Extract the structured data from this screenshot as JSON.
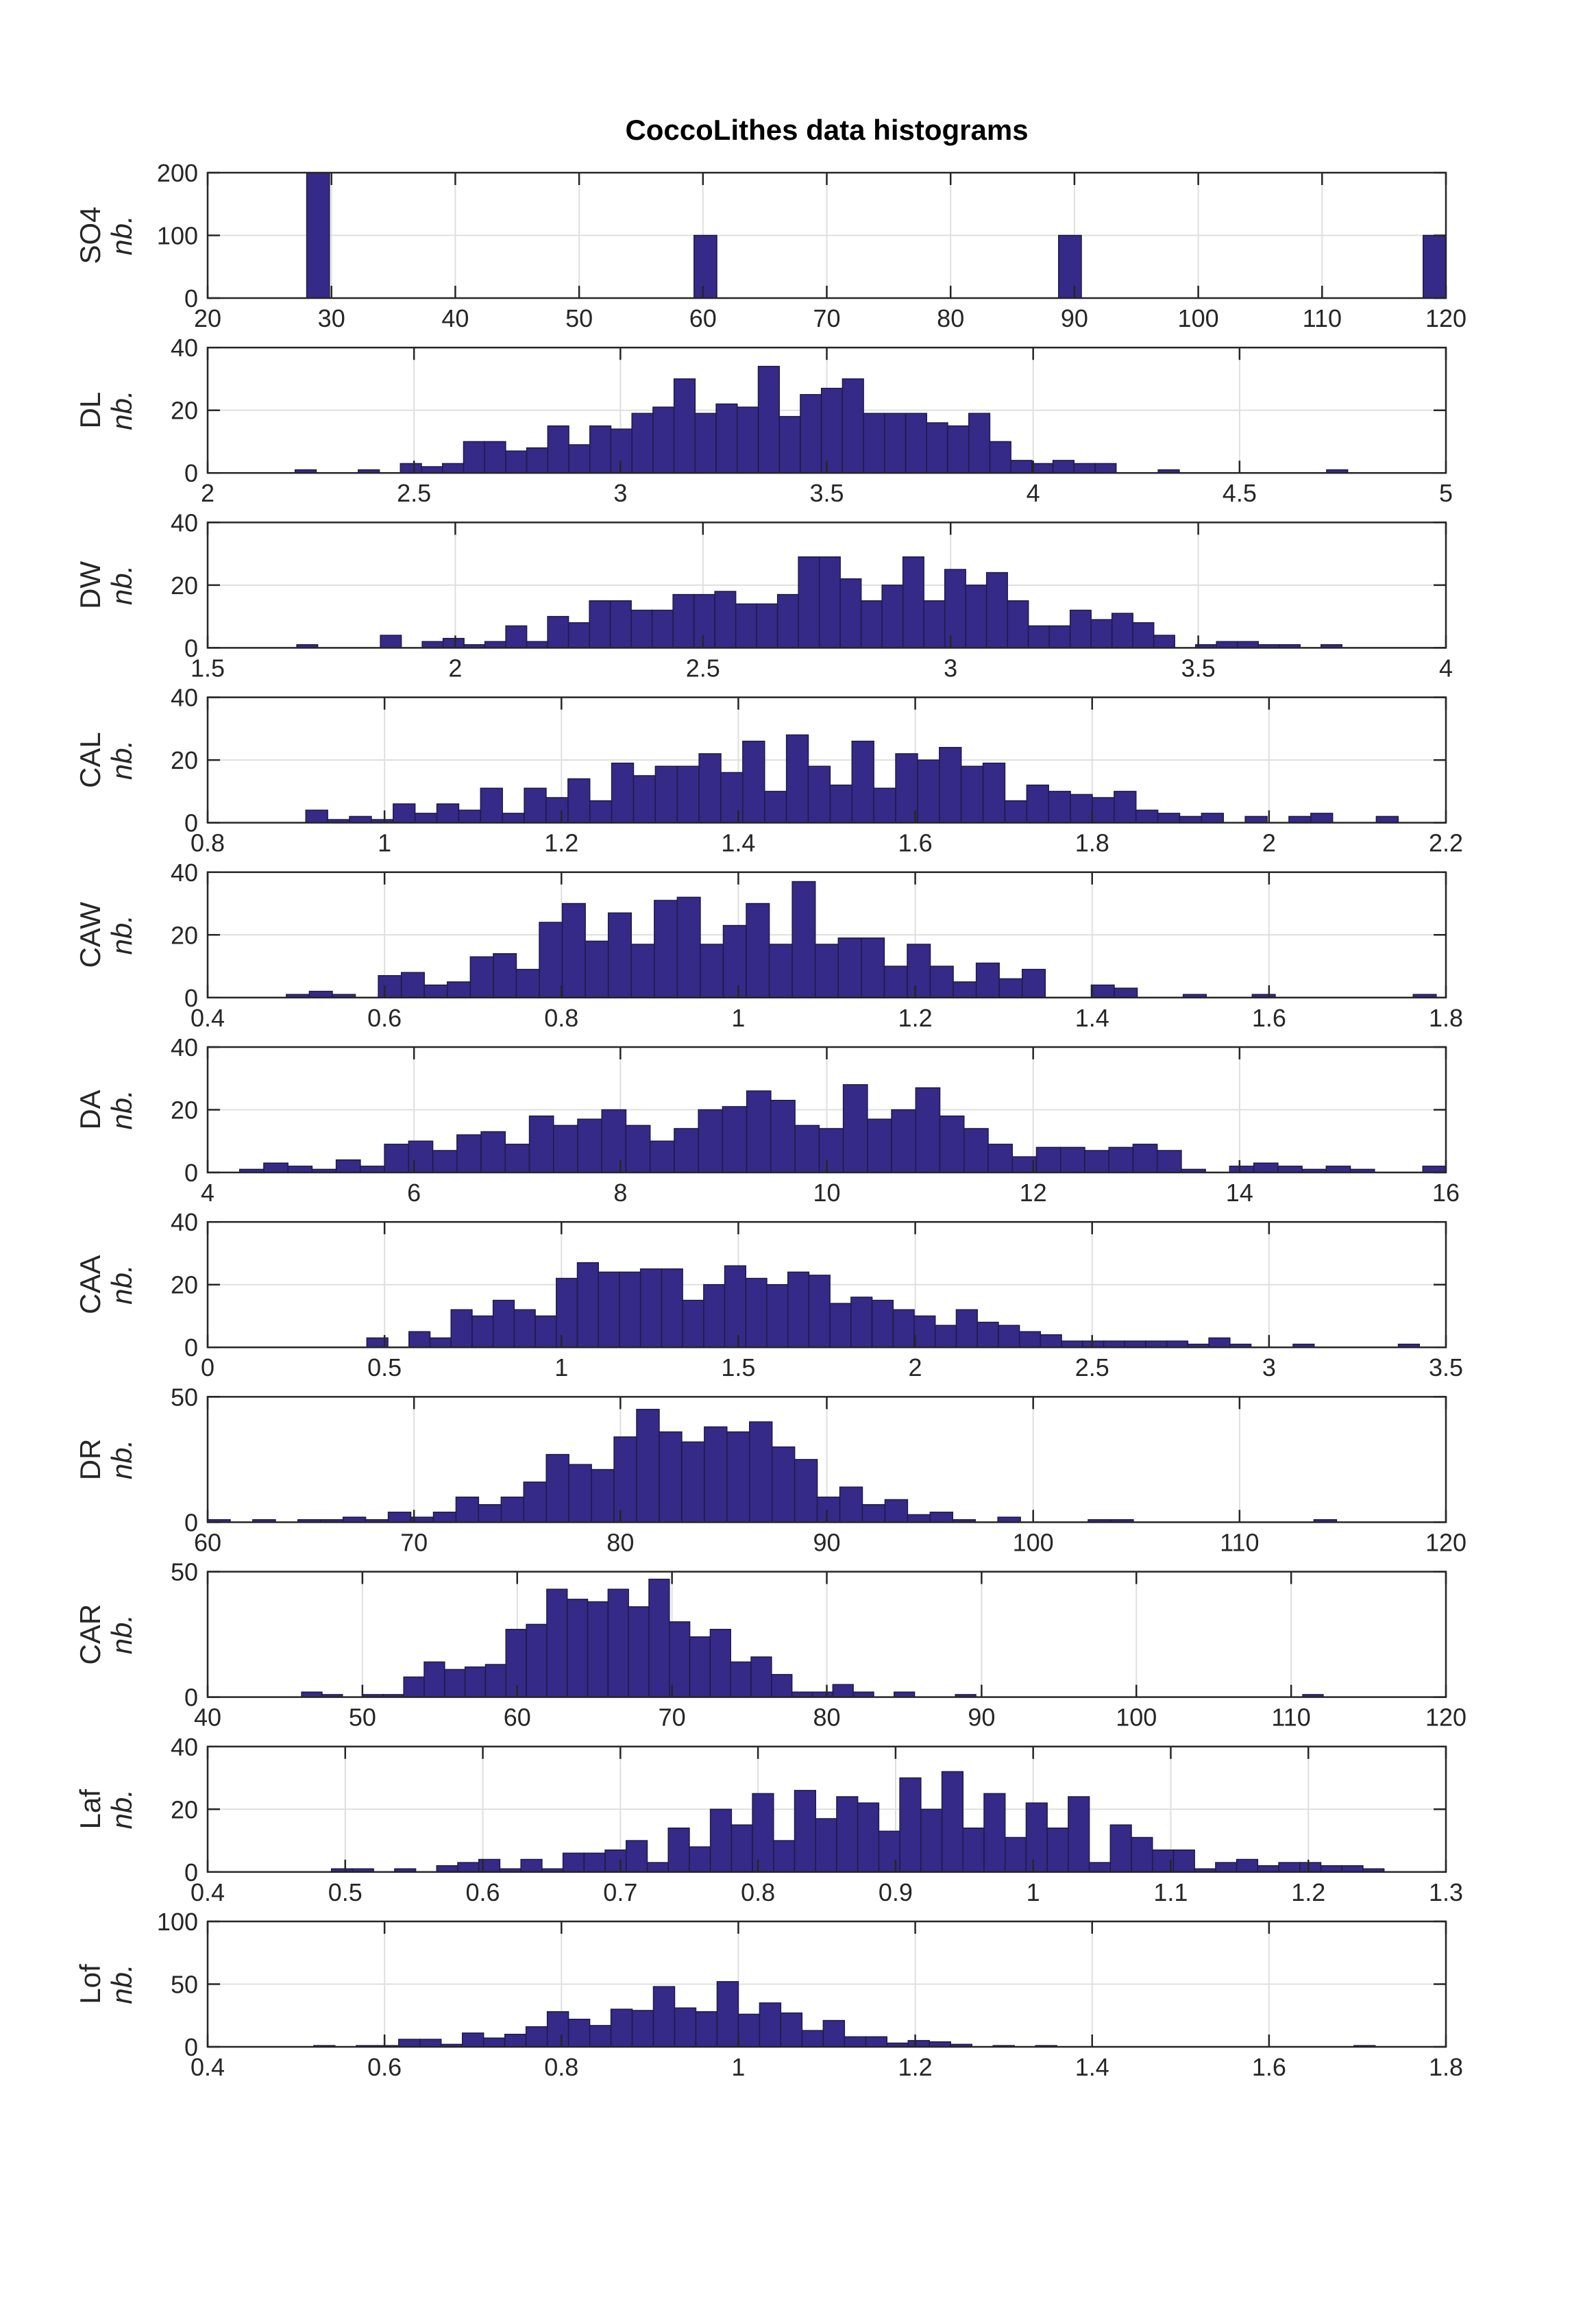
{
  "chart_data": {
    "title": "CoccoLithes data histograms",
    "type": "bar",
    "bar_color": "#352a87",
    "grid": true,
    "panels": [
      {
        "name": "SO4",
        "ylabel": "SO4",
        "ylabel_sub": "nb.",
        "xlim": [
          20,
          120
        ],
        "ylim": [
          0,
          200
        ],
        "xticks": [
          "20",
          "30",
          "40",
          "50",
          "60",
          "70",
          "80",
          "90",
          "100",
          "110",
          "120"
        ],
        "xtick_values": [
          20,
          30,
          40,
          50,
          60,
          70,
          80,
          90,
          100,
          110,
          120
        ],
        "yticks": [
          "0",
          "100",
          "200"
        ],
        "ytick_values": [
          0,
          100,
          200
        ],
        "bin_start": 28,
        "bin_width": 1.84,
        "counts": [
          200,
          0,
          0,
          0,
          0,
          0,
          0,
          0,
          0,
          0,
          0,
          0,
          0,
          0,
          0,
          0,
          0,
          100,
          0,
          0,
          0,
          0,
          0,
          0,
          0,
          0,
          0,
          0,
          0,
          0,
          0,
          0,
          0,
          100,
          0,
          0,
          0,
          0,
          0,
          0,
          0,
          0,
          0,
          0,
          0,
          0,
          0,
          0,
          0,
          100
        ]
      },
      {
        "name": "DL",
        "ylabel": "DL",
        "ylabel_sub": "nb.",
        "xlim": [
          2,
          5
        ],
        "ylim": [
          0,
          40
        ],
        "xticks": [
          "2",
          "2.5",
          "3",
          "3.5",
          "4",
          "4.5",
          "5"
        ],
        "xtick_values": [
          2,
          2.5,
          3,
          3.5,
          4,
          4.5,
          5
        ],
        "yticks": [
          "0",
          "20",
          "40"
        ],
        "ytick_values": [
          0,
          20,
          40
        ],
        "bin_start": 2.212,
        "bin_width": 0.051,
        "counts": [
          1,
          0,
          0,
          1,
          0,
          3,
          2,
          3,
          10,
          10,
          7,
          8,
          15,
          9,
          15,
          14,
          19,
          21,
          30,
          19,
          22,
          21,
          34,
          18,
          25,
          27,
          30,
          19,
          19,
          19,
          16,
          15,
          19,
          10,
          4,
          3,
          4,
          3,
          3,
          0,
          0,
          1,
          0,
          0,
          0,
          0,
          0,
          0,
          0,
          1
        ]
      },
      {
        "name": "DW",
        "ylabel": "DW",
        "ylabel_sub": "nb.",
        "xlim": [
          1.5,
          4
        ],
        "ylim": [
          0,
          40
        ],
        "xticks": [
          "1.5",
          "2",
          "2.5",
          "3",
          "3.5",
          "4"
        ],
        "xtick_values": [
          1.5,
          2,
          2.5,
          3,
          3.5,
          4
        ],
        "yticks": [
          "0",
          "20",
          "40"
        ],
        "ytick_values": [
          0,
          20,
          40
        ],
        "bin_start": 1.68,
        "bin_width": 0.0422,
        "counts": [
          1,
          0,
          0,
          0,
          4,
          0,
          2,
          3,
          1,
          2,
          7,
          2,
          10,
          8,
          15,
          15,
          12,
          12,
          17,
          17,
          18,
          14,
          14,
          17,
          29,
          29,
          22,
          15,
          20,
          29,
          15,
          25,
          20,
          24,
          15,
          7,
          7,
          12,
          9,
          11,
          8,
          4,
          0,
          1,
          2,
          2,
          1,
          1,
          0,
          1
        ]
      },
      {
        "name": "CAL",
        "ylabel": "CAL",
        "ylabel_sub": "nb.",
        "xlim": [
          0.8,
          2.2
        ],
        "ylim": [
          0,
          40
        ],
        "xticks": [
          "0.8",
          "1",
          "1.2",
          "1.4",
          "1.6",
          "1.8",
          "2",
          "2.2"
        ],
        "xtick_values": [
          0.8,
          1,
          1.2,
          1.4,
          1.6,
          1.8,
          2,
          2.2
        ],
        "yticks": [
          "0",
          "20",
          "40"
        ],
        "ytick_values": [
          0,
          20,
          40
        ],
        "bin_start": 0.911,
        "bin_width": 0.0247,
        "counts": [
          4,
          1,
          2,
          1,
          6,
          3,
          6,
          4,
          11,
          3,
          11,
          8,
          14,
          7,
          19,
          15,
          18,
          18,
          22,
          16,
          26,
          10,
          28,
          18,
          12,
          26,
          11,
          22,
          20,
          24,
          18,
          19,
          7,
          12,
          10,
          9,
          8,
          10,
          4,
          3,
          2,
          3,
          0,
          2,
          0,
          2,
          3,
          0,
          0,
          2
        ]
      },
      {
        "name": "CAW",
        "ylabel": "CAW",
        "ylabel_sub": "nb.",
        "xlim": [
          0.4,
          1.8
        ],
        "ylim": [
          0,
          40
        ],
        "xticks": [
          "0.4",
          "0.6",
          "0.8",
          "1",
          "1.2",
          "1.4",
          "1.6",
          "1.8"
        ],
        "xtick_values": [
          0.4,
          0.6,
          0.8,
          1,
          1.2,
          1.4,
          1.6,
          1.8
        ],
        "yticks": [
          "0",
          "20",
          "40"
        ],
        "ytick_values": [
          0,
          20,
          40
        ],
        "bin_start": 0.489,
        "bin_width": 0.026,
        "counts": [
          1,
          2,
          1,
          0,
          7,
          8,
          4,
          5,
          13,
          14,
          9,
          24,
          30,
          18,
          27,
          17,
          31,
          32,
          17,
          23,
          30,
          17,
          37,
          17,
          19,
          19,
          10,
          17,
          10,
          5,
          11,
          6,
          9,
          0,
          0,
          4,
          3,
          0,
          0,
          1,
          0,
          0,
          1,
          0,
          0,
          0,
          0,
          0,
          0,
          1
        ]
      },
      {
        "name": "DA",
        "ylabel": "DA",
        "ylabel_sub": "nb.",
        "xlim": [
          4,
          16
        ],
        "ylim": [
          0,
          40
        ],
        "xticks": [
          "4",
          "6",
          "8",
          "10",
          "12",
          "14",
          "16"
        ],
        "xtick_values": [
          4,
          6,
          8,
          10,
          12,
          14,
          16
        ],
        "yticks": [
          "0",
          "20",
          "40"
        ],
        "ytick_values": [
          0,
          20,
          40
        ],
        "bin_start": 4.31,
        "bin_width": 0.234,
        "counts": [
          1,
          3,
          2,
          1,
          4,
          2,
          9,
          10,
          7,
          12,
          13,
          9,
          18,
          15,
          17,
          20,
          15,
          10,
          14,
          20,
          21,
          26,
          23,
          15,
          14,
          28,
          17,
          20,
          27,
          18,
          14,
          9,
          5,
          8,
          8,
          7,
          8,
          9,
          7,
          1,
          0,
          2,
          3,
          2,
          1,
          2,
          1,
          0,
          0,
          2
        ]
      },
      {
        "name": "CAA",
        "ylabel": "CAA",
        "ylabel_sub": "nb.",
        "xlim": [
          0,
          3.5
        ],
        "ylim": [
          0,
          40
        ],
        "xticks": [
          "0",
          "0.5",
          "1",
          "1.5",
          "2",
          "2.5",
          "3",
          "3.5"
        ],
        "xtick_values": [
          0,
          0.5,
          1,
          1.5,
          2,
          2.5,
          3,
          3.5
        ],
        "yticks": [
          "0",
          "20",
          "40"
        ],
        "ytick_values": [
          0,
          20,
          40
        ],
        "bin_start": 0.45,
        "bin_width": 0.0595,
        "counts": [
          3,
          0,
          5,
          3,
          12,
          10,
          15,
          12,
          10,
          22,
          27,
          24,
          24,
          25,
          25,
          15,
          20,
          26,
          22,
          20,
          24,
          23,
          14,
          16,
          15,
          12,
          10,
          7,
          12,
          8,
          7,
          5,
          4,
          2,
          2,
          2,
          2,
          2,
          2,
          1,
          3,
          1,
          0,
          0,
          1,
          0,
          0,
          0,
          0,
          1
        ]
      },
      {
        "name": "DR",
        "ylabel": "DR",
        "ylabel_sub": "nb.",
        "xlim": [
          60,
          120
        ],
        "ylim": [
          0,
          50
        ],
        "xticks": [
          "60",
          "70",
          "80",
          "90",
          "100",
          "110",
          "120"
        ],
        "xtick_values": [
          60,
          70,
          80,
          90,
          100,
          110,
          120
        ],
        "yticks": [
          "0",
          "50"
        ],
        "ytick_values": [
          0,
          50
        ],
        "bin_start": 60,
        "bin_width": 1.094,
        "counts": [
          1,
          0,
          1,
          0,
          1,
          1,
          2,
          1,
          4,
          2,
          4,
          10,
          7,
          10,
          16,
          27,
          23,
          21,
          34,
          45,
          36,
          32,
          38,
          36,
          40,
          30,
          25,
          10,
          14,
          7,
          9,
          3,
          4,
          1,
          0,
          2,
          0,
          0,
          0,
          1,
          1,
          0,
          0,
          0,
          0,
          0,
          0,
          0,
          0,
          1
        ]
      },
      {
        "name": "CAR",
        "ylabel": "CAR",
        "ylabel_sub": "nb.",
        "xlim": [
          40,
          120
        ],
        "ylim": [
          0,
          50
        ],
        "xticks": [
          "40",
          "50",
          "60",
          "70",
          "80",
          "90",
          "100",
          "110",
          "120"
        ],
        "xtick_values": [
          40,
          50,
          60,
          70,
          80,
          90,
          100,
          110,
          120
        ],
        "yticks": [
          "0",
          "50"
        ],
        "ytick_values": [
          0,
          50
        ],
        "bin_start": 46.07,
        "bin_width": 1.32,
        "counts": [
          2,
          1,
          0,
          1,
          1,
          8,
          14,
          11,
          12,
          13,
          27,
          29,
          43,
          39,
          38,
          43,
          36,
          47,
          30,
          24,
          27,
          14,
          16,
          9,
          2,
          2,
          5,
          2,
          0,
          2,
          0,
          0,
          1,
          0,
          0,
          0,
          0,
          0,
          0,
          0,
          0,
          0,
          0,
          0,
          0,
          0,
          0,
          0,
          0,
          1
        ]
      },
      {
        "name": "Laf",
        "ylabel": "Laf",
        "ylabel_sub": "nb.",
        "xlim": [
          0.4,
          1.3
        ],
        "ylim": [
          0,
          40
        ],
        "xticks": [
          "0.4",
          "0.5",
          "0.6",
          "0.7",
          "0.8",
          "0.9",
          "1",
          "1.1",
          "1.2",
          "1.3"
        ],
        "xtick_values": [
          0.4,
          0.5,
          0.6,
          0.7,
          0.8,
          0.9,
          1,
          1.1,
          1.2,
          1.3
        ],
        "yticks": [
          "0",
          "20",
          "40"
        ],
        "ytick_values": [
          0,
          20,
          40
        ],
        "bin_start": 0.49,
        "bin_width": 0.0153,
        "counts": [
          1,
          1,
          0,
          1,
          0,
          2,
          3,
          4,
          1,
          4,
          1,
          6,
          6,
          7,
          10,
          3,
          14,
          8,
          20,
          15,
          25,
          10,
          26,
          17,
          24,
          22,
          13,
          30,
          20,
          32,
          14,
          25,
          11,
          22,
          14,
          24,
          3,
          15,
          11,
          7,
          7,
          1,
          3,
          4,
          2,
          3,
          3,
          2,
          2,
          1
        ]
      },
      {
        "name": "Lof",
        "ylabel": "Lof",
        "ylabel_sub": "nb.",
        "xlim": [
          0.4,
          1.8
        ],
        "ylim": [
          0,
          100
        ],
        "xticks": [
          "0.4",
          "0.6",
          "0.8",
          "1",
          "1.2",
          "1.4",
          "1.6",
          "1.8"
        ],
        "xtick_values": [
          0.4,
          0.6,
          0.8,
          1,
          1.2,
          1.4,
          1.6,
          1.8
        ],
        "yticks": [
          "0",
          "50",
          "100"
        ],
        "ytick_values": [
          0,
          50,
          100
        ],
        "bin_start": 0.52,
        "bin_width": 0.024,
        "counts": [
          1,
          0,
          1,
          1,
          6,
          6,
          2,
          11,
          7,
          10,
          16,
          28,
          22,
          17,
          30,
          29,
          48,
          31,
          28,
          52,
          26,
          35,
          27,
          13,
          21,
          8,
          8,
          3,
          5,
          4,
          2,
          0,
          1,
          0,
          1,
          0,
          0,
          0,
          0,
          0,
          0,
          0,
          0,
          0,
          0,
          0,
          0,
          0,
          0,
          1
        ]
      }
    ]
  }
}
